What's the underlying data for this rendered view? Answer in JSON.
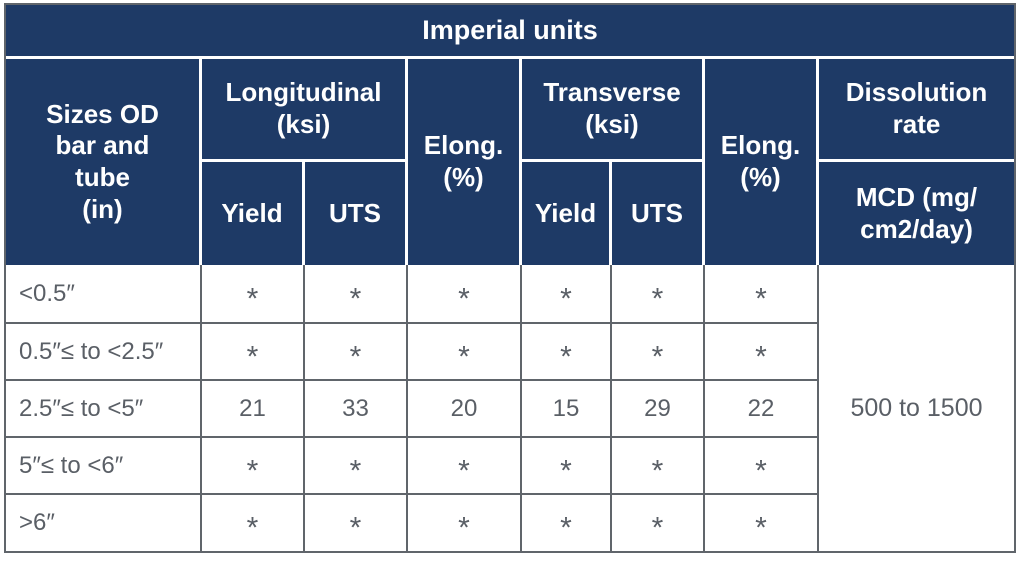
{
  "colors": {
    "header_navy": "#1e3a66",
    "header_text": "#ffffff",
    "body_text": "#5a5f66",
    "grid_line": "#60656b"
  },
  "header": {
    "title": "Imperial units",
    "sizes": "Sizes OD\nbar and\ntube\n(in)",
    "longitudinal": "Longitudinal\n(ksi)",
    "transverse": "Transverse\n(ksi)",
    "elong": "Elong.\n(%)",
    "yield": "Yield",
    "uts": "UTS",
    "dissolution": "Dissolution\nrate",
    "mcd": "MCD (mg/\ncm2/day)"
  },
  "body": {
    "rows": [
      {
        "label": "<0.5″",
        "values": [
          "*",
          "*",
          "*",
          "*",
          "*",
          "*"
        ]
      },
      {
        "label": "0.5″≤ to <2.5″",
        "values": [
          "*",
          "*",
          "*",
          "*",
          "*",
          "*"
        ]
      },
      {
        "label": "2.5″≤ to <5″",
        "values": [
          "21",
          "33",
          "20",
          "15",
          "29",
          "22"
        ]
      },
      {
        "label": "5″≤ to <6″",
        "values": [
          "*",
          "*",
          "*",
          "*",
          "*",
          "*"
        ]
      },
      {
        "label": ">6″",
        "values": [
          "*",
          "*",
          "*",
          "*",
          "*",
          "*"
        ]
      }
    ],
    "dissolution_value": "500 to 1500"
  },
  "chart_data": {
    "type": "table",
    "title": "Imperial units",
    "columns": [
      "Sizes OD bar and tube (in)",
      "Longitudinal Yield (ksi)",
      "Longitudinal UTS (ksi)",
      "Elong. (%)",
      "Transverse Yield (ksi)",
      "Transverse UTS (ksi)",
      "Elong. (%)",
      "Dissolution rate MCD (mg/cm2/day)"
    ],
    "rows": [
      [
        "<0.5″",
        "*",
        "*",
        "*",
        "*",
        "*",
        "*",
        "500 to 1500"
      ],
      [
        "0.5″≤ to <2.5″",
        "*",
        "*",
        "*",
        "*",
        "*",
        "*",
        "500 to 1500"
      ],
      [
        "2.5″≤ to <5″",
        "21",
        "33",
        "20",
        "15",
        "29",
        "22",
        "500 to 1500"
      ],
      [
        "5″≤ to <6″",
        "*",
        "*",
        "*",
        "*",
        "*",
        "*",
        "500 to 1500"
      ],
      [
        ">6″",
        "*",
        "*",
        "*",
        "*",
        "*",
        "*",
        "500 to 1500"
      ]
    ]
  }
}
